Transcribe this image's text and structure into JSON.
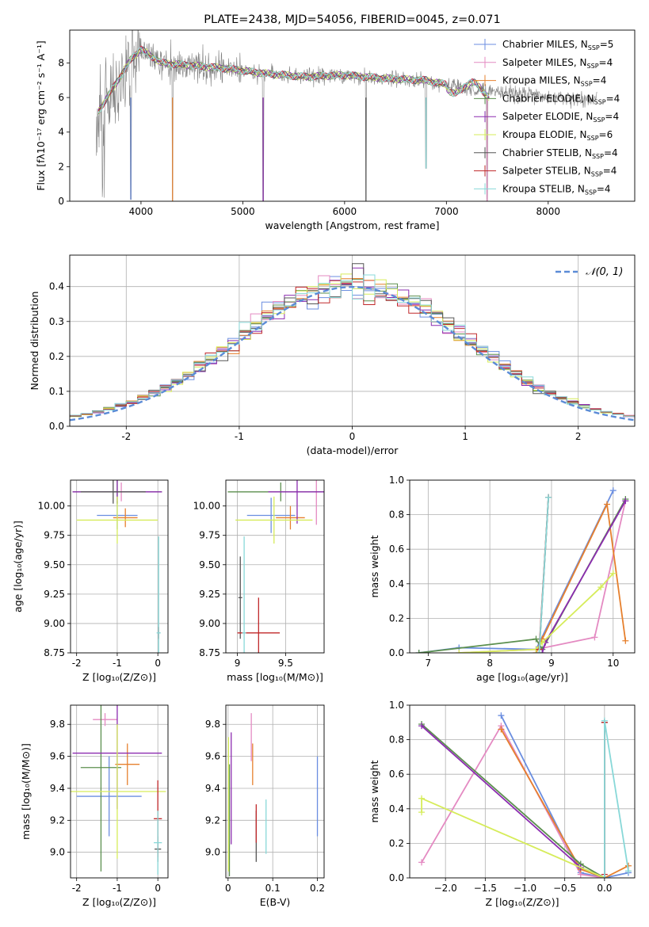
{
  "chart_data": [
    {
      "id": "spectrum",
      "type": "line",
      "title": "PLATE=2438, MJD=54056, FIBERID=0045, z=0.071",
      "xlabel": "wavelength [Angstrom, rest frame]",
      "ylabel": "Flux [fλ10⁻¹⁷ erg cm⁻² s⁻¹ A⁻¹]",
      "xlim": [
        3300,
        8850
      ],
      "ylim": [
        0,
        9.9
      ],
      "xticks": [
        4000,
        5000,
        6000,
        7000,
        8000
      ],
      "yticks": [
        0,
        2,
        4,
        6,
        8
      ],
      "data_color": "#808080",
      "legend_position": "upper right",
      "series": [
        {
          "name": "Chabrier MILES, N",
          "sub": "SSP",
          "suffix": "=5",
          "color": "#6b8ee0"
        },
        {
          "name": "Salpeter MILES, N",
          "sub": "SSP",
          "suffix": "=4",
          "color": "#e48ac2"
        },
        {
          "name": "Kroupa MILES, N",
          "sub": "SSP",
          "suffix": "=4",
          "color": "#e6802e"
        },
        {
          "name": "Chabrier ELODIE, N",
          "sub": "SSP",
          "suffix": "=4",
          "color": "#5b8f4e"
        },
        {
          "name": "Salpeter ELODIE, N",
          "sub": "SSP",
          "suffix": "=4",
          "color": "#8c2cb0"
        },
        {
          "name": "Kroupa ELODIE, N",
          "sub": "SSP",
          "suffix": "=6",
          "color": "#d6ec5a"
        },
        {
          "name": "Chabrier STELIB, N",
          "sub": "SSP",
          "suffix": "=4",
          "color": "#555555"
        },
        {
          "name": "Salpeter STELIB, N",
          "sub": "SSP",
          "suffix": "=4",
          "color": "#c0282a"
        },
        {
          "name": "Kroupa STELIB, N",
          "sub": "SSP",
          "suffix": "=4",
          "color": "#88d8d8"
        }
      ],
      "model_continuum": [
        [
          3580,
          5.2
        ],
        [
          3700,
          6.3
        ],
        [
          3900,
          8.2
        ],
        [
          4000,
          8.8
        ],
        [
          4200,
          8.0
        ],
        [
          4400,
          7.9
        ],
        [
          4800,
          7.7
        ],
        [
          5200,
          7.4
        ],
        [
          5600,
          7.2
        ],
        [
          6000,
          7.3
        ],
        [
          6400,
          7.1
        ],
        [
          6800,
          7.0
        ],
        [
          7200,
          6.5
        ],
        [
          7600,
          6.3
        ],
        [
          8000,
          6.0
        ],
        [
          8400,
          5.9
        ],
        [
          8500,
          6.0
        ]
      ],
      "absorption_dips": [
        [
          3900,
          0.1
        ],
        [
          4310,
          0.0
        ],
        [
          5200,
          0.0
        ],
        [
          6210,
          0.0
        ],
        [
          6800,
          1.9
        ],
        [
          7400,
          0.0
        ]
      ]
    },
    {
      "id": "residuals",
      "type": "histogram",
      "xlabel": "(data-model)/error",
      "ylabel": "Normed distribution",
      "xlim": [
        -2.5,
        2.5
      ],
      "ylim": [
        0,
        0.49
      ],
      "xticks": [
        -2,
        -1,
        0,
        1,
        2
      ],
      "yticks": [
        0.0,
        0.1,
        0.2,
        0.3,
        0.4
      ],
      "grid": true,
      "reference_curve": {
        "name": "N(0,1)",
        "label_text": "𝒩(0, 1)",
        "color": "#5b8bd6",
        "style": "dashed",
        "mean": 0,
        "sigma": 1
      },
      "bin_width": 0.1
    },
    {
      "id": "age_vs_Z",
      "type": "errorbar",
      "xlabel": "Z [log₁₀(Z/Z⊙)]",
      "ylabel": "age  [log₁₀(age/yr)]",
      "xlim": [
        -2.15,
        0.25
      ],
      "ylim": [
        8.75,
        10.22
      ],
      "xticks": [
        -2,
        -1,
        0
      ],
      "yticks": [
        8.75,
        9.0,
        9.25,
        9.5,
        9.75,
        10.0
      ],
      "ytick_labels": [
        "8.75",
        "9.00",
        "9.25",
        "9.50",
        "9.75",
        "10.00"
      ],
      "grid": true,
      "points": [
        {
          "x": -1.0,
          "y": 9.92,
          "xerr": 0.5,
          "yerr": 0.12,
          "color": "#6b8ee0"
        },
        {
          "x": -0.9,
          "y": 10.12,
          "xerr": 1.0,
          "yerr": 0.08,
          "color": "#e48ac2"
        },
        {
          "x": -0.8,
          "y": 9.9,
          "xerr": 0.3,
          "yerr": 0.08,
          "color": "#e6802e"
        },
        {
          "x": -1.0,
          "y": 10.12,
          "xerr": 1.1,
          "yerr": 0.1,
          "color": "#5b8f4e"
        },
        {
          "x": -1.0,
          "y": 10.12,
          "xerr": 1.1,
          "yerr": 0.1,
          "color": "#8c2cb0"
        },
        {
          "x": -1.0,
          "y": 9.88,
          "xerr": 1.0,
          "yerr": 0.2,
          "color": "#d6ec5a"
        },
        {
          "x": -1.1,
          "y": 10.12,
          "xerr": 0.8,
          "yerr": 0.1,
          "color": "#555555"
        },
        {
          "x": 0.02,
          "y": 8.92,
          "xerr": 0.02,
          "yerr": 0.05,
          "color": "#c0282a"
        },
        {
          "x": 0.02,
          "y": 8.92,
          "xerr": 0.05,
          "yerr": 0.82,
          "color": "#88d8d8"
        }
      ]
    },
    {
      "id": "age_vs_mass",
      "type": "errorbar",
      "xlabel": "mass [log₁₀(M/M⊙)]",
      "xlim": [
        8.88,
        9.9
      ],
      "ylim": [
        8.75,
        10.22
      ],
      "xticks": [
        9.0,
        9.5
      ],
      "yticks": [
        8.75,
        9.0,
        9.25,
        9.5,
        9.75,
        10.0
      ],
      "ytick_labels": [
        "8.75",
        "9.00",
        "9.25",
        "9.50",
        "9.75",
        "10.00"
      ],
      "grid": true,
      "points": [
        {
          "x": 9.35,
          "y": 9.92,
          "xerr": 0.25,
          "yerr": 0.15,
          "color": "#6b8ee0"
        },
        {
          "x": 9.82,
          "y": 10.12,
          "xerr": 0.05,
          "yerr": 0.28,
          "color": "#e48ac2"
        },
        {
          "x": 9.55,
          "y": 9.9,
          "xerr": 0.15,
          "yerr": 0.1,
          "color": "#e6802e"
        },
        {
          "x": 9.45,
          "y": 10.12,
          "xerr": 0.55,
          "yerr": 0.08,
          "color": "#5b8f4e"
        },
        {
          "x": 9.62,
          "y": 10.12,
          "xerr": 0.3,
          "yerr": 0.27,
          "color": "#8c2cb0"
        },
        {
          "x": 9.38,
          "y": 9.88,
          "xerr": 0.4,
          "yerr": 0.2,
          "color": "#d6ec5a"
        },
        {
          "x": 9.03,
          "y": 9.22,
          "xerr": 0.02,
          "yerr": 0.35,
          "color": "#555555"
        },
        {
          "x": 9.22,
          "y": 8.92,
          "xerr": 0.22,
          "yerr": 0.3,
          "color": "#c0282a"
        },
        {
          "x": 9.07,
          "y": 8.92,
          "xerr": 0.02,
          "yerr": 0.82,
          "color": "#88d8d8"
        }
      ]
    },
    {
      "id": "weight_vs_age",
      "type": "line",
      "xlabel": "age  [log₁₀(age/yr)]",
      "ylabel": "mass weight",
      "xlim": [
        6.7,
        10.35
      ],
      "ylim": [
        0,
        1.0
      ],
      "xticks": [
        7,
        8,
        9,
        10
      ],
      "yticks": [
        0.0,
        0.2,
        0.4,
        0.6,
        0.8,
        1.0
      ],
      "grid": true,
      "series": [
        {
          "color": "#6b8ee0",
          "x": [
            6.85,
            7.5,
            8.75,
            10.0
          ],
          "y": [
            0.0,
            0.03,
            0.02,
            0.94
          ]
        },
        {
          "color": "#e48ac2",
          "x": [
            7.5,
            8.75,
            9.7,
            10.2
          ],
          "y": [
            0.0,
            0.02,
            0.09,
            0.88
          ]
        },
        {
          "color": "#e6802e",
          "x": [
            8.75,
            8.85,
            9.9,
            10.2
          ],
          "y": [
            0.0,
            0.08,
            0.86,
            0.07
          ]
        },
        {
          "color": "#5b8f4e",
          "x": [
            6.85,
            8.75,
            8.85,
            10.2
          ],
          "y": [
            0.0,
            0.08,
            0.02,
            0.89
          ]
        },
        {
          "color": "#8c2cb0",
          "x": [
            8.85,
            8.9,
            10.2
          ],
          "y": [
            0.0,
            0.06,
            0.88
          ]
        },
        {
          "color": "#d6ec5a",
          "x": [
            7.5,
            8.75,
            8.85,
            9.8,
            10.0
          ],
          "y": [
            0.0,
            0.02,
            0.06,
            0.38,
            0.46
          ]
        },
        {
          "color": "#555555",
          "x": [
            8.8,
            8.95
          ],
          "y": [
            0.0,
            0.9
          ]
        },
        {
          "color": "#c0282a",
          "x": [
            8.8,
            8.95
          ],
          "y": [
            0.02,
            0.9
          ]
        },
        {
          "color": "#88d8d8",
          "x": [
            8.8,
            8.95
          ],
          "y": [
            0.0,
            0.9
          ]
        }
      ]
    },
    {
      "id": "mass_vs_Z",
      "type": "errorbar",
      "xlabel": "Z [log₁₀(Z/Z⊙)]",
      "ylabel": "mass [log₁₀(M/M⊙)]",
      "xlim": [
        -2.15,
        0.25
      ],
      "ylim": [
        8.84,
        9.92
      ],
      "xticks": [
        -2,
        -1,
        0
      ],
      "yticks": [
        9.0,
        9.2,
        9.4,
        9.6,
        9.8
      ],
      "ytick_labels": [
        "9.0",
        "9.2",
        "9.4",
        "9.6",
        "9.8"
      ],
      "grid": true,
      "points": [
        {
          "x": -1.2,
          "y": 9.35,
          "xerr": 0.8,
          "yerr": 0.25,
          "color": "#6b8ee0"
        },
        {
          "x": -1.3,
          "y": 9.83,
          "xerr": 0.3,
          "yerr": 0.04,
          "color": "#e48ac2"
        },
        {
          "x": -0.75,
          "y": 9.55,
          "xerr": 0.3,
          "yerr": 0.13,
          "color": "#e6802e"
        },
        {
          "x": -1.4,
          "y": 9.53,
          "xerr": 0.5,
          "yerr": 0.65,
          "color": "#5b8f4e"
        },
        {
          "x": -1.0,
          "y": 9.62,
          "xerr": 1.1,
          "yerr": 0.35,
          "color": "#8c2cb0"
        },
        {
          "x": -1.0,
          "y": 9.38,
          "xerr": 1.2,
          "yerr": 0.42,
          "color": "#d6ec5a"
        },
        {
          "x": 0.0,
          "y": 9.02,
          "xerr": 0.08,
          "yerr": 0.08,
          "color": "#555555"
        },
        {
          "x": 0.0,
          "y": 9.21,
          "xerr": 0.1,
          "yerr": 0.24,
          "color": "#c0282a"
        },
        {
          "x": 0.0,
          "y": 9.06,
          "xerr": 0.1,
          "yerr": 0.2,
          "color": "#88d8d8"
        }
      ]
    },
    {
      "id": "mass_vs_ebv",
      "type": "errorbar",
      "xlabel": "E(B-V)",
      "xlim": [
        -0.005,
        0.215
      ],
      "ylim": [
        8.84,
        9.92
      ],
      "xticks": [
        0.0,
        0.1,
        0.2
      ],
      "yticks": [
        9.0,
        9.2,
        9.4,
        9.6,
        9.8
      ],
      "ytick_labels": [
        "9.0",
        "9.2",
        "9.4",
        "9.6",
        "9.8"
      ],
      "grid": true,
      "points": [
        {
          "x": 0.2,
          "y": 9.35,
          "xerr": 0.0,
          "yerr": 0.25,
          "color": "#6b8ee0"
        },
        {
          "x": 0.052,
          "y": 9.72,
          "xerr": 0.0,
          "yerr": 0.15,
          "color": "#e48ac2"
        },
        {
          "x": 0.055,
          "y": 9.55,
          "xerr": 0.0,
          "yerr": 0.13,
          "color": "#e6802e"
        },
        {
          "x": 0.003,
          "y": 9.2,
          "xerr": 0.0,
          "yerr": 0.35,
          "color": "#5b8f4e"
        },
        {
          "x": 0.007,
          "y": 9.4,
          "xerr": 0.0,
          "yerr": 0.35,
          "color": "#8c2cb0"
        },
        {
          "x": 0.001,
          "y": 9.3,
          "xerr": 0.0,
          "yerr": 0.42,
          "color": "#d6ec5a"
        },
        {
          "x": 0.063,
          "y": 9.1,
          "xerr": 0.0,
          "yerr": 0.16,
          "color": "#555555"
        },
        {
          "x": 0.063,
          "y": 9.18,
          "xerr": 0.0,
          "yerr": 0.12,
          "color": "#c0282a"
        },
        {
          "x": 0.085,
          "y": 9.16,
          "xerr": 0.0,
          "yerr": 0.17,
          "color": "#88d8d8"
        }
      ]
    },
    {
      "id": "weight_vs_Z",
      "type": "line",
      "xlabel": "Z [log₁₀(Z/Z⊙)]",
      "ylabel": "mass weight",
      "xlim": [
        -2.45,
        0.38
      ],
      "ylim": [
        0,
        1.0
      ],
      "xticks": [
        -2.0,
        -1.5,
        -1.0,
        -0.5,
        0.0
      ],
      "xtick_labels": [
        "−2.0",
        "−1.5",
        "−1.0",
        "−0.5",
        "0.0"
      ],
      "yticks": [
        0.0,
        0.2,
        0.4,
        0.6,
        0.8,
        1.0
      ],
      "grid": true,
      "series": [
        {
          "color": "#6b8ee0",
          "x": [
            -1.3,
            -0.3,
            0.0,
            0.3
          ],
          "y": [
            0.94,
            0.03,
            0.0,
            0.03
          ]
        },
        {
          "color": "#e48ac2",
          "x": [
            -2.3,
            -1.3,
            -0.3,
            0.0
          ],
          "y": [
            0.09,
            0.88,
            0.02,
            0.0
          ]
        },
        {
          "color": "#e6802e",
          "x": [
            -1.3,
            -0.3,
            0.0,
            0.3
          ],
          "y": [
            0.86,
            0.05,
            0.0,
            0.07
          ]
        },
        {
          "color": "#5b8f4e",
          "x": [
            -2.3,
            -0.3,
            0.0
          ],
          "y": [
            0.89,
            0.08,
            0.0
          ]
        },
        {
          "color": "#8c2cb0",
          "x": [
            -2.3,
            -0.3,
            0.0
          ],
          "y": [
            0.88,
            0.06,
            0.0
          ]
        },
        {
          "color": "#d6ec5a",
          "x": [
            -2.3,
            -2.3,
            0.0
          ],
          "y": [
            0.38,
            0.46,
            0.0
          ]
        },
        {
          "color": "#555555",
          "x": [
            0.0,
            0.0
          ],
          "y": [
            0.0,
            0.9
          ]
        },
        {
          "color": "#c0282a",
          "x": [
            0.0,
            0.0
          ],
          "y": [
            0.02,
            0.9
          ]
        },
        {
          "color": "#88d8d8",
          "x": [
            0.0,
            0.0,
            0.3
          ],
          "y": [
            0.0,
            0.91,
            0.04
          ]
        }
      ]
    }
  ]
}
